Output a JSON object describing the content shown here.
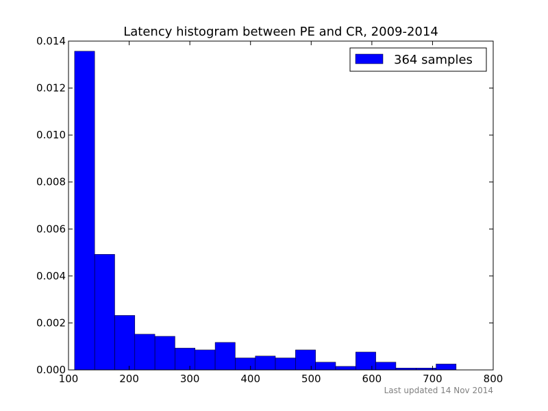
{
  "chart_data": {
    "type": "bar",
    "title": "Latency histogram between PE and CR, 2009-2014",
    "xlabel": "",
    "ylabel": "",
    "xlim": [
      100,
      800
    ],
    "ylim": [
      0,
      0.014
    ],
    "xticks": [
      "100",
      "200",
      "300",
      "400",
      "500",
      "600",
      "700",
      "800"
    ],
    "yticks": [
      "0.000",
      "0.002",
      "0.004",
      "0.006",
      "0.008",
      "0.010",
      "0.012",
      "0.014"
    ],
    "grid": false,
    "legend_position": "top-right",
    "bar_color": "#0000ff",
    "bin_edges": [
      110,
      143.1,
      176.2,
      209.3,
      242.4,
      275.5,
      308.6,
      341.7,
      374.8,
      407.9,
      441,
      474.1,
      507.2,
      540.3,
      573.4,
      606.5,
      639.6,
      672.7,
      705.8
    ],
    "series": [
      {
        "name": "364 samples",
        "values": [
          0.01357,
          0.00492,
          0.00232,
          0.00152,
          0.00143,
          0.00093,
          0.00085,
          0.00117,
          0.00051,
          0.00059,
          0.00051,
          0.00085,
          0.00033,
          0.00015,
          0.00076,
          0.00033,
          8e-05,
          8e-05,
          0.00025
        ]
      }
    ],
    "annotation": "Last updated 14 Nov 2014"
  }
}
